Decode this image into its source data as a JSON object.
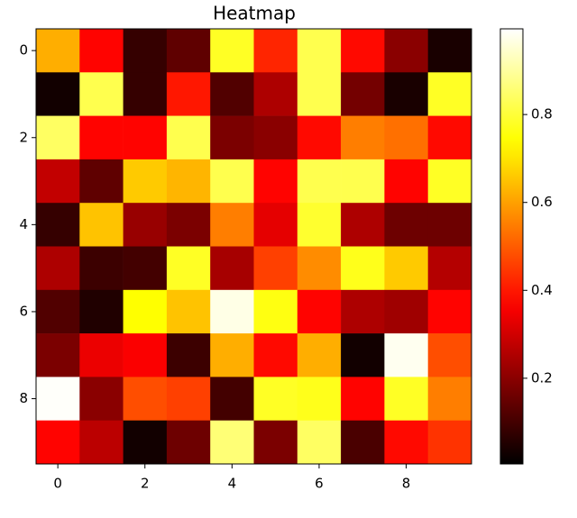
{
  "chart_data": {
    "type": "heatmap",
    "title": "Heatmap",
    "colormap": "hot",
    "z": [
      [
        0.62,
        0.37,
        0.08,
        0.14,
        0.78,
        0.42,
        0.82,
        0.38,
        0.2,
        0.04
      ],
      [
        0.03,
        0.82,
        0.08,
        0.4,
        0.12,
        0.25,
        0.82,
        0.17,
        0.04,
        0.78
      ],
      [
        0.84,
        0.37,
        0.37,
        0.82,
        0.18,
        0.2,
        0.38,
        0.55,
        0.53,
        0.38
      ],
      [
        0.28,
        0.14,
        0.66,
        0.63,
        0.82,
        0.37,
        0.82,
        0.82,
        0.37,
        0.78
      ],
      [
        0.08,
        0.65,
        0.22,
        0.18,
        0.55,
        0.33,
        0.79,
        0.25,
        0.16,
        0.16
      ],
      [
        0.25,
        0.09,
        0.1,
        0.78,
        0.24,
        0.46,
        0.57,
        0.77,
        0.66,
        0.26
      ],
      [
        0.12,
        0.05,
        0.74,
        0.65,
        0.97,
        0.76,
        0.37,
        0.25,
        0.23,
        0.37
      ],
      [
        0.18,
        0.34,
        0.36,
        0.09,
        0.62,
        0.38,
        0.62,
        0.03,
        0.98,
        0.48
      ],
      [
        0.99,
        0.2,
        0.48,
        0.46,
        0.1,
        0.78,
        0.77,
        0.37,
        0.78,
        0.55
      ],
      [
        0.37,
        0.27,
        0.03,
        0.16,
        0.86,
        0.18,
        0.84,
        0.11,
        0.38,
        0.44
      ]
    ],
    "xlim": [
      -0.5,
      9.5
    ],
    "ylim": [
      9.5,
      -0.5
    ],
    "xticks": [
      0,
      2,
      4,
      6,
      8
    ],
    "yticks": [
      0,
      2,
      4,
      6,
      8
    ],
    "clim": [
      0.005,
      0.995
    ],
    "colorbar_ticks": [
      0.2,
      0.4,
      0.6,
      0.8
    ]
  }
}
